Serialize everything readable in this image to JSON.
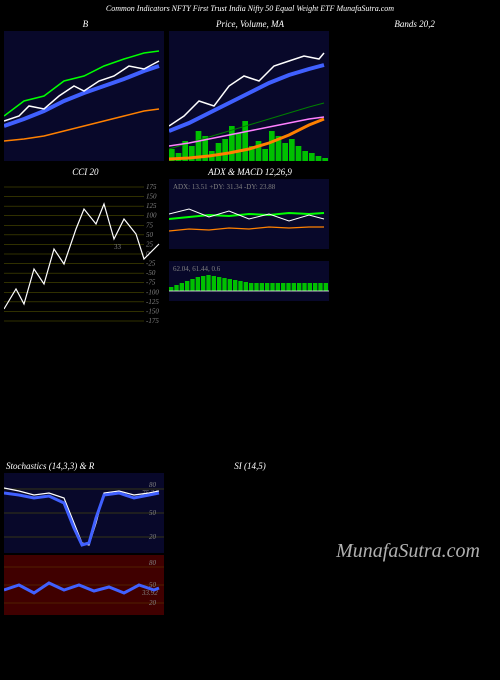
{
  "page_title": "Common Indicators NFTY First Trust India Nifty 50 Equal Weight ETF MunafaSutra.com",
  "watermark": "MunafaSutra.com",
  "colors": {
    "bg": "#000000",
    "panel": "#08082a",
    "white": "#ffffff",
    "green": "#00ff00",
    "blue": "#4060ff",
    "orange": "#ff8000",
    "magenta": "#ff80ff",
    "grid": "#606000",
    "darkgreen": "#008000",
    "red": "#ff0000",
    "darkred": "#400000"
  },
  "row1": {
    "p1": {
      "title": "B"
    },
    "p2": {
      "title": "Price, Volume, MA"
    },
    "p3": {
      "title": "Bands 20,2"
    }
  },
  "row2": {
    "p1": {
      "title": "CCI 20",
      "ticks": [
        175,
        150,
        125,
        100,
        75,
        50,
        25,
        0,
        -25,
        -50,
        -75,
        -100,
        -125,
        -150,
        -175
      ],
      "highlight": "33"
    },
    "p2a": {
      "title": "ADX & MACD 12,26,9",
      "label": "ADX: 13.51 +DY: 31.34 -DY: 23.88"
    },
    "p2b": {
      "label": "62.04, 61.44, 0.6"
    }
  },
  "row3": {
    "p1": {
      "title": "Stochastics (14,3,3) & R",
      "ticks": [
        80,
        "75.24",
        50,
        20
      ]
    },
    "p1b": {
      "ticks": [
        80,
        50,
        "33.92",
        20
      ]
    },
    "p2": {
      "title": "SI (14,5)"
    }
  },
  "line_b": {
    "white": "0,90 15,85 25,75 40,78 55,65 70,55 80,60 95,50 110,45 125,35 140,38 155,30",
    "green": "0,85 20,70 40,65 60,50 80,45 100,35 120,28 140,22 155,20",
    "blue": "0,95 20,88 40,80 60,70 80,62 100,55 120,48 140,40 155,35",
    "orange": "0,110 20,108 40,105 60,100 80,95 100,90 120,85 140,80 155,78"
  },
  "line_price": {
    "white": "0,95 15,85 30,70 45,75 60,55 75,45 90,50 105,35 120,30 135,25 150,28 155,22",
    "blue": "0,100 20,92 40,82 60,72 80,62 100,52 120,44 140,38 155,34",
    "magenta": "0,115 20,112 40,108 60,104 80,100 100,96 120,92 140,88 155,86",
    "orange": "0,128 20,127 40,125 60,122 80,118 100,112 120,104 140,94 155,88",
    "green": "0,118 20,112 40,106 60,100 80,94 100,88 120,82 140,76 155,72"
  },
  "vol_bars": [
    12,
    8,
    20,
    15,
    30,
    25,
    10,
    18,
    22,
    35,
    28,
    40,
    15,
    20,
    12,
    30,
    25,
    18,
    22,
    15,
    10,
    8,
    5,
    3
  ],
  "cci_line": "0,130 12,110 20,125 30,90 40,105 50,70 60,85 72,50 80,30 92,45 100,25 110,60 120,40 132,55 140,80 155,65",
  "adx": {
    "white": "0,35 20,30 40,38 60,32 80,40 100,35 120,42 140,36 155,40",
    "green": "0,40 20,38 40,36 60,37 80,35 100,36 120,34 140,35 155,34",
    "orange": "0,52 20,50 40,51 60,49 80,50 100,48 120,49 140,48 155,48"
  },
  "macd_bars": [
    4,
    6,
    8,
    10,
    12,
    14,
    15,
    16,
    15,
    14,
    13,
    12,
    11,
    10,
    9,
    8,
    8,
    8,
    8,
    8,
    8,
    8,
    8,
    8,
    8,
    8,
    8,
    8,
    8,
    8
  ],
  "stoch": {
    "white": "0,15 15,18 30,22 45,20 60,25 70,50 78,70 85,72 92,50 100,20 115,18 130,22 145,20 155,18",
    "blue": "0,20 15,22 30,25 45,23 60,30 70,55 78,72 85,70 92,45 100,22 115,20 130,25 145,22 155,20"
  },
  "rsi": {
    "blue": "0,35 15,30 30,38 45,28 60,35 75,30 90,36 105,32 120,38 135,30 150,35 155,33"
  }
}
